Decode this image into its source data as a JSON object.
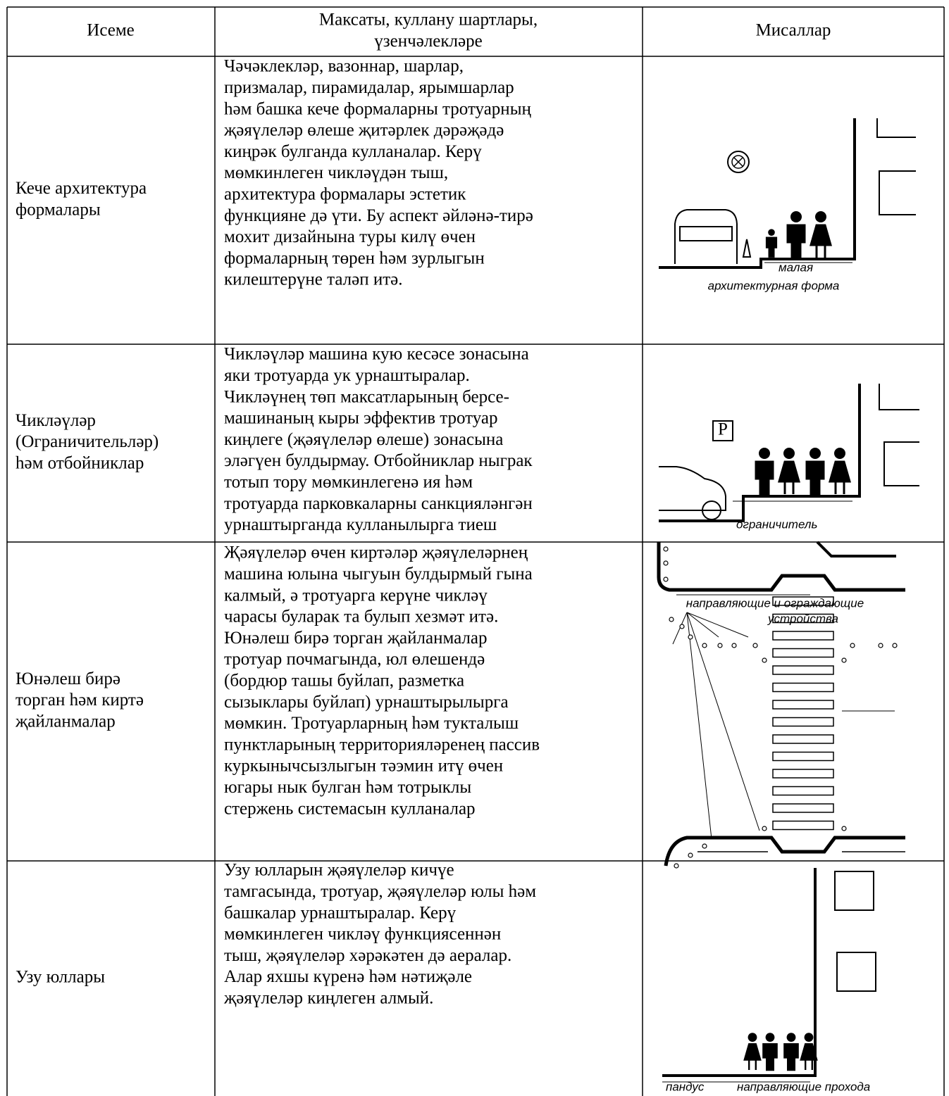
{
  "table": {
    "header": [
      [
        "Исеме"
      ],
      [
        "Максаты, куллану шартлары,",
        "үзенчәлекләре"
      ],
      [
        "Мисаллар"
      ]
    ],
    "rows": [
      {
        "name": [
          "Кече архитектура",
          "формалары"
        ],
        "description": [
          "Чәчәклекләр, вазоннар, шарлар,",
          "призмалар, пирамидалар, ярымшарлар",
          "һәм башка кече формаларны тротуарның",
          "җәяүлеләр өлеше җитәрлек дәрәҗәдә",
          "киңрәк булганда кулланалар. Керү",
          "мөмкинлеген чикләүдән тыш,",
          "архитектура формалары эстетик",
          "функцияне дә үти. Бу аспект әйләнә-тирә",
          "мохит дизайнына туры килү өчен",
          "формаларның төрен һәм зурлыгын",
          "килештерүне таләп итә."
        ],
        "example_labels": [
          "малая",
          "архитектурная форма"
        ]
      },
      {
        "name": [
          "Чикләүләр",
          "(Ограничительләр)",
          "һәм отбойниклар"
        ],
        "description": [
          "Чикләүләр машина кую кесәсе зонасына",
          "яки тротуарда ук урнаштыралар.",
          "Чикләүнең төп максатларының берсе-",
          "машинаның кыры эффектив тротуар",
          "киңлеге (җәяүлеләр өлеше) зонасына",
          "эләгүен булдырмау. Отбойниклар ныграк",
          "тотып тору мөмкинлегенә ия  һәм",
          "тротуарда парковкаларны санкцияләнгән",
          "урнаштырганда кулланылырга тиеш"
        ],
        "example_labels": [
          "P",
          "ограничитель"
        ]
      },
      {
        "name": [
          "Юнәлеш бирә",
          "торган һәм киртә",
          "җайланмалар"
        ],
        "description": [
          "Җәяүлеләр өчен киртәләр җәяүлеләрнең",
          "машина юлына чыгуын булдырмый гына",
          "калмый, ә тротуарга керүне чикләү",
          "чарасы буларак та булып хезмәт итә.",
          "Юнәлеш бирә торган җайланмалар",
          "тротуар почмагында, юл өлешендә",
          "(бордюр ташы буйлап, разметка",
          "сызыклары буйлап) урнаштырылырга",
          "мөмкин. Тротуарларның һәм тукталыш",
          "пунктларының территорияләренең пассив",
          "куркынычсызлыгын тәэмин итү өчен",
          "югары нык булган  һәм тотрыклы",
          "стержень системасын кулланалар"
        ],
        "example_labels": [
          "направляющие и ограждающие",
          "устройства"
        ]
      },
      {
        "name": [
          "Узу юллары"
        ],
        "description": [
          "Узу юлларын җәяүлеләр кичүе",
          "тамгасында, тротуар, җәяүлеләр юлы һәм",
          "башкалар урнаштыралар. Керү",
          "мөмкинлеген чикләү функциясеннән",
          "тыш, җәяүлеләр хәрәкәтен дә аералар.",
          "Алар яхшы күренә һәм нәтиҗәле",
          "җәяүлеләр киңлеген алмый."
        ],
        "example_labels": [
          "пандус",
          "направляющие прохода"
        ]
      }
    ]
  }
}
